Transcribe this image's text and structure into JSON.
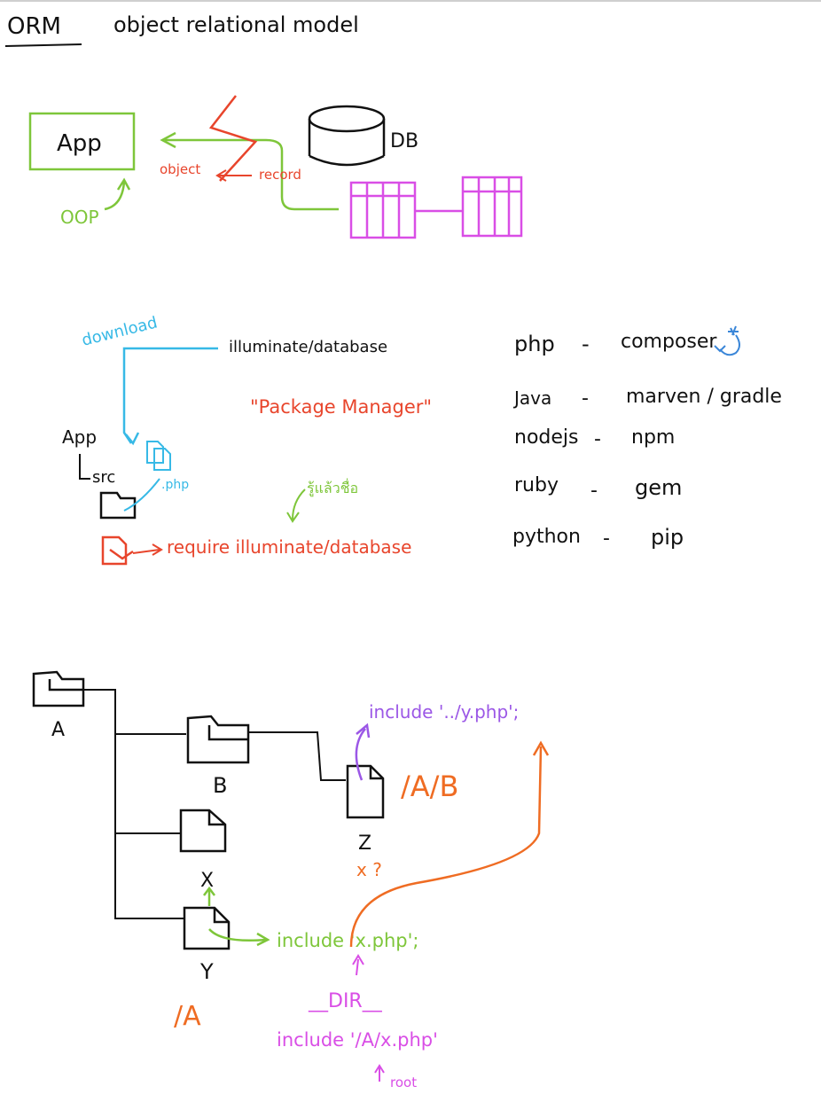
{
  "colors": {
    "ink": "#111111",
    "green": "#7ec63a",
    "red": "#e8452c",
    "magenta": "#d94ee6",
    "cyan": "#37b9e6",
    "orange": "#ef6c23",
    "purple": "#9b57e6",
    "blue": "#3a86d8"
  },
  "section_orm": {
    "title_abbr": "ORM",
    "title_full": "object relational model",
    "app_label": "App",
    "db_label": "DB",
    "object_label": "object",
    "record_label": "record",
    "oop_label": "OOP"
  },
  "section_packages": {
    "download_label": "download",
    "package_name": "illuminate/database",
    "package_manager_label": "\"Package Manager\"",
    "app_label": "App",
    "src_label": "src",
    "php_label": ".php",
    "thai_note": "รู้แล้วชื่อ",
    "require_line": "require illuminate/database",
    "managers": [
      {
        "lang": "php",
        "dash": "-",
        "tool": "composer"
      },
      {
        "lang": "Java",
        "dash": "-",
        "tool": "marven / gradle"
      },
      {
        "lang": "nodejs",
        "dash": "-",
        "tool": "npm"
      },
      {
        "lang": "ruby",
        "dash": "-",
        "tool": "gem"
      },
      {
        "lang": "python",
        "dash": "-",
        "tool": "pip"
      }
    ]
  },
  "section_include": {
    "folder_a": "A",
    "folder_b": "B",
    "file_z": "Z",
    "file_x": "X",
    "file_y": "Y",
    "include_up": "include '../y.php';",
    "path_ab": "/A/B",
    "x_question": "x ?",
    "include_x": "include 'x.php';",
    "dir_const": "__DIR__",
    "path_a": "/A",
    "include_abs": "include '/A/x.php'",
    "root_label": "root"
  }
}
